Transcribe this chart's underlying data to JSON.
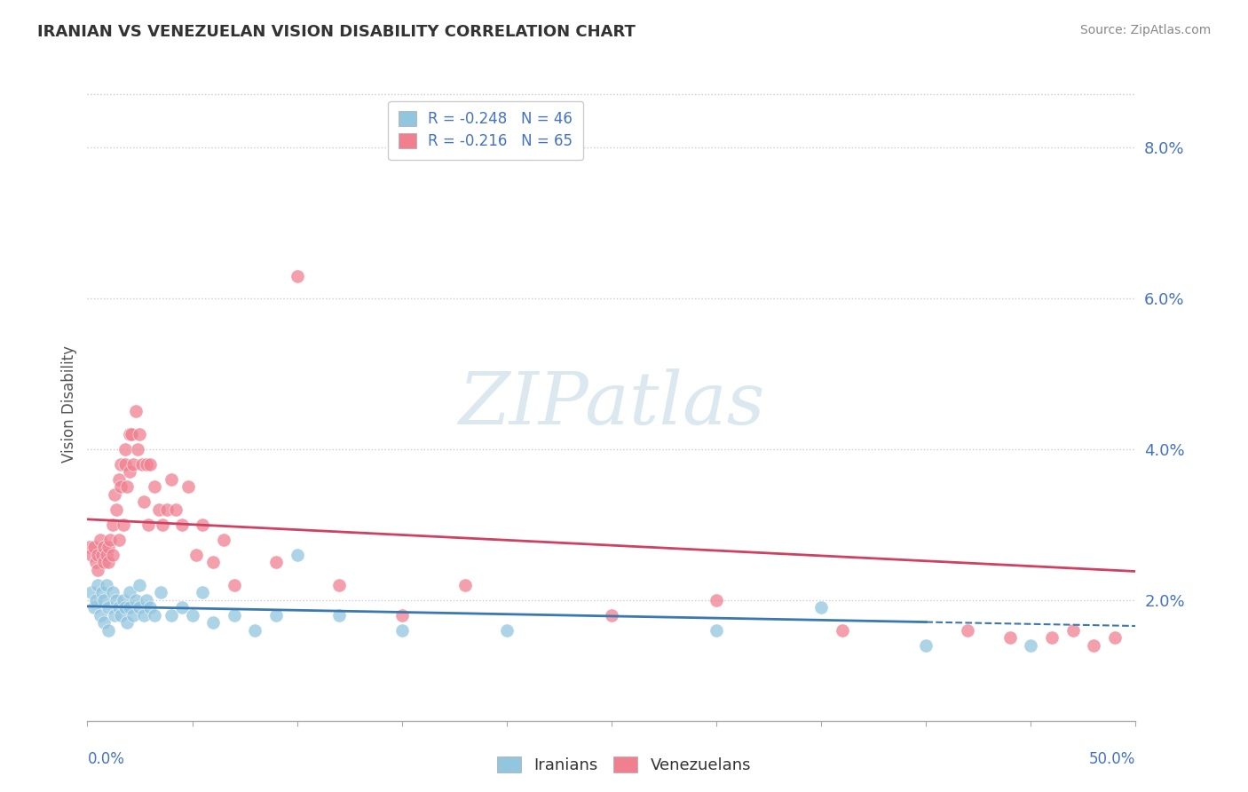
{
  "title": "IRANIAN VS VENEZUELAN VISION DISABILITY CORRELATION CHART",
  "source": "Source: ZipAtlas.com",
  "ylabel": "Vision Disability",
  "xmin": 0.0,
  "xmax": 0.5,
  "ymin": 0.004,
  "ymax": 0.088,
  "ytick_vals": [
    0.02,
    0.04,
    0.06,
    0.08
  ],
  "ytick_labels": [
    "2.0%",
    "4.0%",
    "6.0%",
    "8.0%"
  ],
  "legend_iranian": "R = -0.248   N = 46",
  "legend_venezuelan": "R = -0.216   N = 65",
  "iranian_color": "#92C5DE",
  "venezuelan_color": "#F08090",
  "iranian_line_color": "#3A78B0",
  "venezuelan_line_color": "#D04060",
  "iranian_scatter_x": [
    0.002,
    0.003,
    0.004,
    0.005,
    0.006,
    0.007,
    0.008,
    0.008,
    0.009,
    0.01,
    0.01,
    0.012,
    0.013,
    0.014,
    0.015,
    0.016,
    0.017,
    0.018,
    0.019,
    0.02,
    0.02,
    0.022,
    0.023,
    0.025,
    0.025,
    0.027,
    0.028,
    0.03,
    0.032,
    0.035,
    0.04,
    0.045,
    0.05,
    0.055,
    0.06,
    0.07,
    0.08,
    0.09,
    0.1,
    0.12,
    0.15,
    0.2,
    0.3,
    0.35,
    0.4,
    0.45
  ],
  "iranian_scatter_y": [
    0.021,
    0.019,
    0.02,
    0.022,
    0.018,
    0.021,
    0.02,
    0.017,
    0.022,
    0.019,
    0.016,
    0.021,
    0.018,
    0.02,
    0.019,
    0.018,
    0.02,
    0.019,
    0.017,
    0.019,
    0.021,
    0.018,
    0.02,
    0.019,
    0.022,
    0.018,
    0.02,
    0.019,
    0.018,
    0.021,
    0.018,
    0.019,
    0.018,
    0.021,
    0.017,
    0.018,
    0.016,
    0.018,
    0.026,
    0.018,
    0.016,
    0.016,
    0.016,
    0.019,
    0.014,
    0.014
  ],
  "venezuelan_scatter_x": [
    0.001,
    0.002,
    0.003,
    0.004,
    0.005,
    0.005,
    0.006,
    0.007,
    0.008,
    0.008,
    0.009,
    0.01,
    0.01,
    0.011,
    0.012,
    0.012,
    0.013,
    0.014,
    0.015,
    0.015,
    0.016,
    0.016,
    0.017,
    0.018,
    0.018,
    0.019,
    0.02,
    0.02,
    0.021,
    0.022,
    0.023,
    0.024,
    0.025,
    0.026,
    0.027,
    0.028,
    0.029,
    0.03,
    0.032,
    0.034,
    0.036,
    0.038,
    0.04,
    0.042,
    0.045,
    0.048,
    0.052,
    0.055,
    0.06,
    0.065,
    0.07,
    0.09,
    0.12,
    0.15,
    0.18,
    0.25,
    0.3,
    0.36,
    0.42,
    0.44,
    0.46,
    0.47,
    0.48,
    0.49,
    0.1
  ],
  "venezuelan_scatter_y": [
    0.027,
    0.026,
    0.027,
    0.025,
    0.026,
    0.024,
    0.028,
    0.026,
    0.027,
    0.025,
    0.026,
    0.027,
    0.025,
    0.028,
    0.03,
    0.026,
    0.034,
    0.032,
    0.036,
    0.028,
    0.038,
    0.035,
    0.03,
    0.04,
    0.038,
    0.035,
    0.042,
    0.037,
    0.042,
    0.038,
    0.045,
    0.04,
    0.042,
    0.038,
    0.033,
    0.038,
    0.03,
    0.038,
    0.035,
    0.032,
    0.03,
    0.032,
    0.036,
    0.032,
    0.03,
    0.035,
    0.026,
    0.03,
    0.025,
    0.028,
    0.022,
    0.025,
    0.022,
    0.018,
    0.022,
    0.018,
    0.02,
    0.016,
    0.016,
    0.015,
    0.015,
    0.016,
    0.014,
    0.015,
    0.063
  ]
}
